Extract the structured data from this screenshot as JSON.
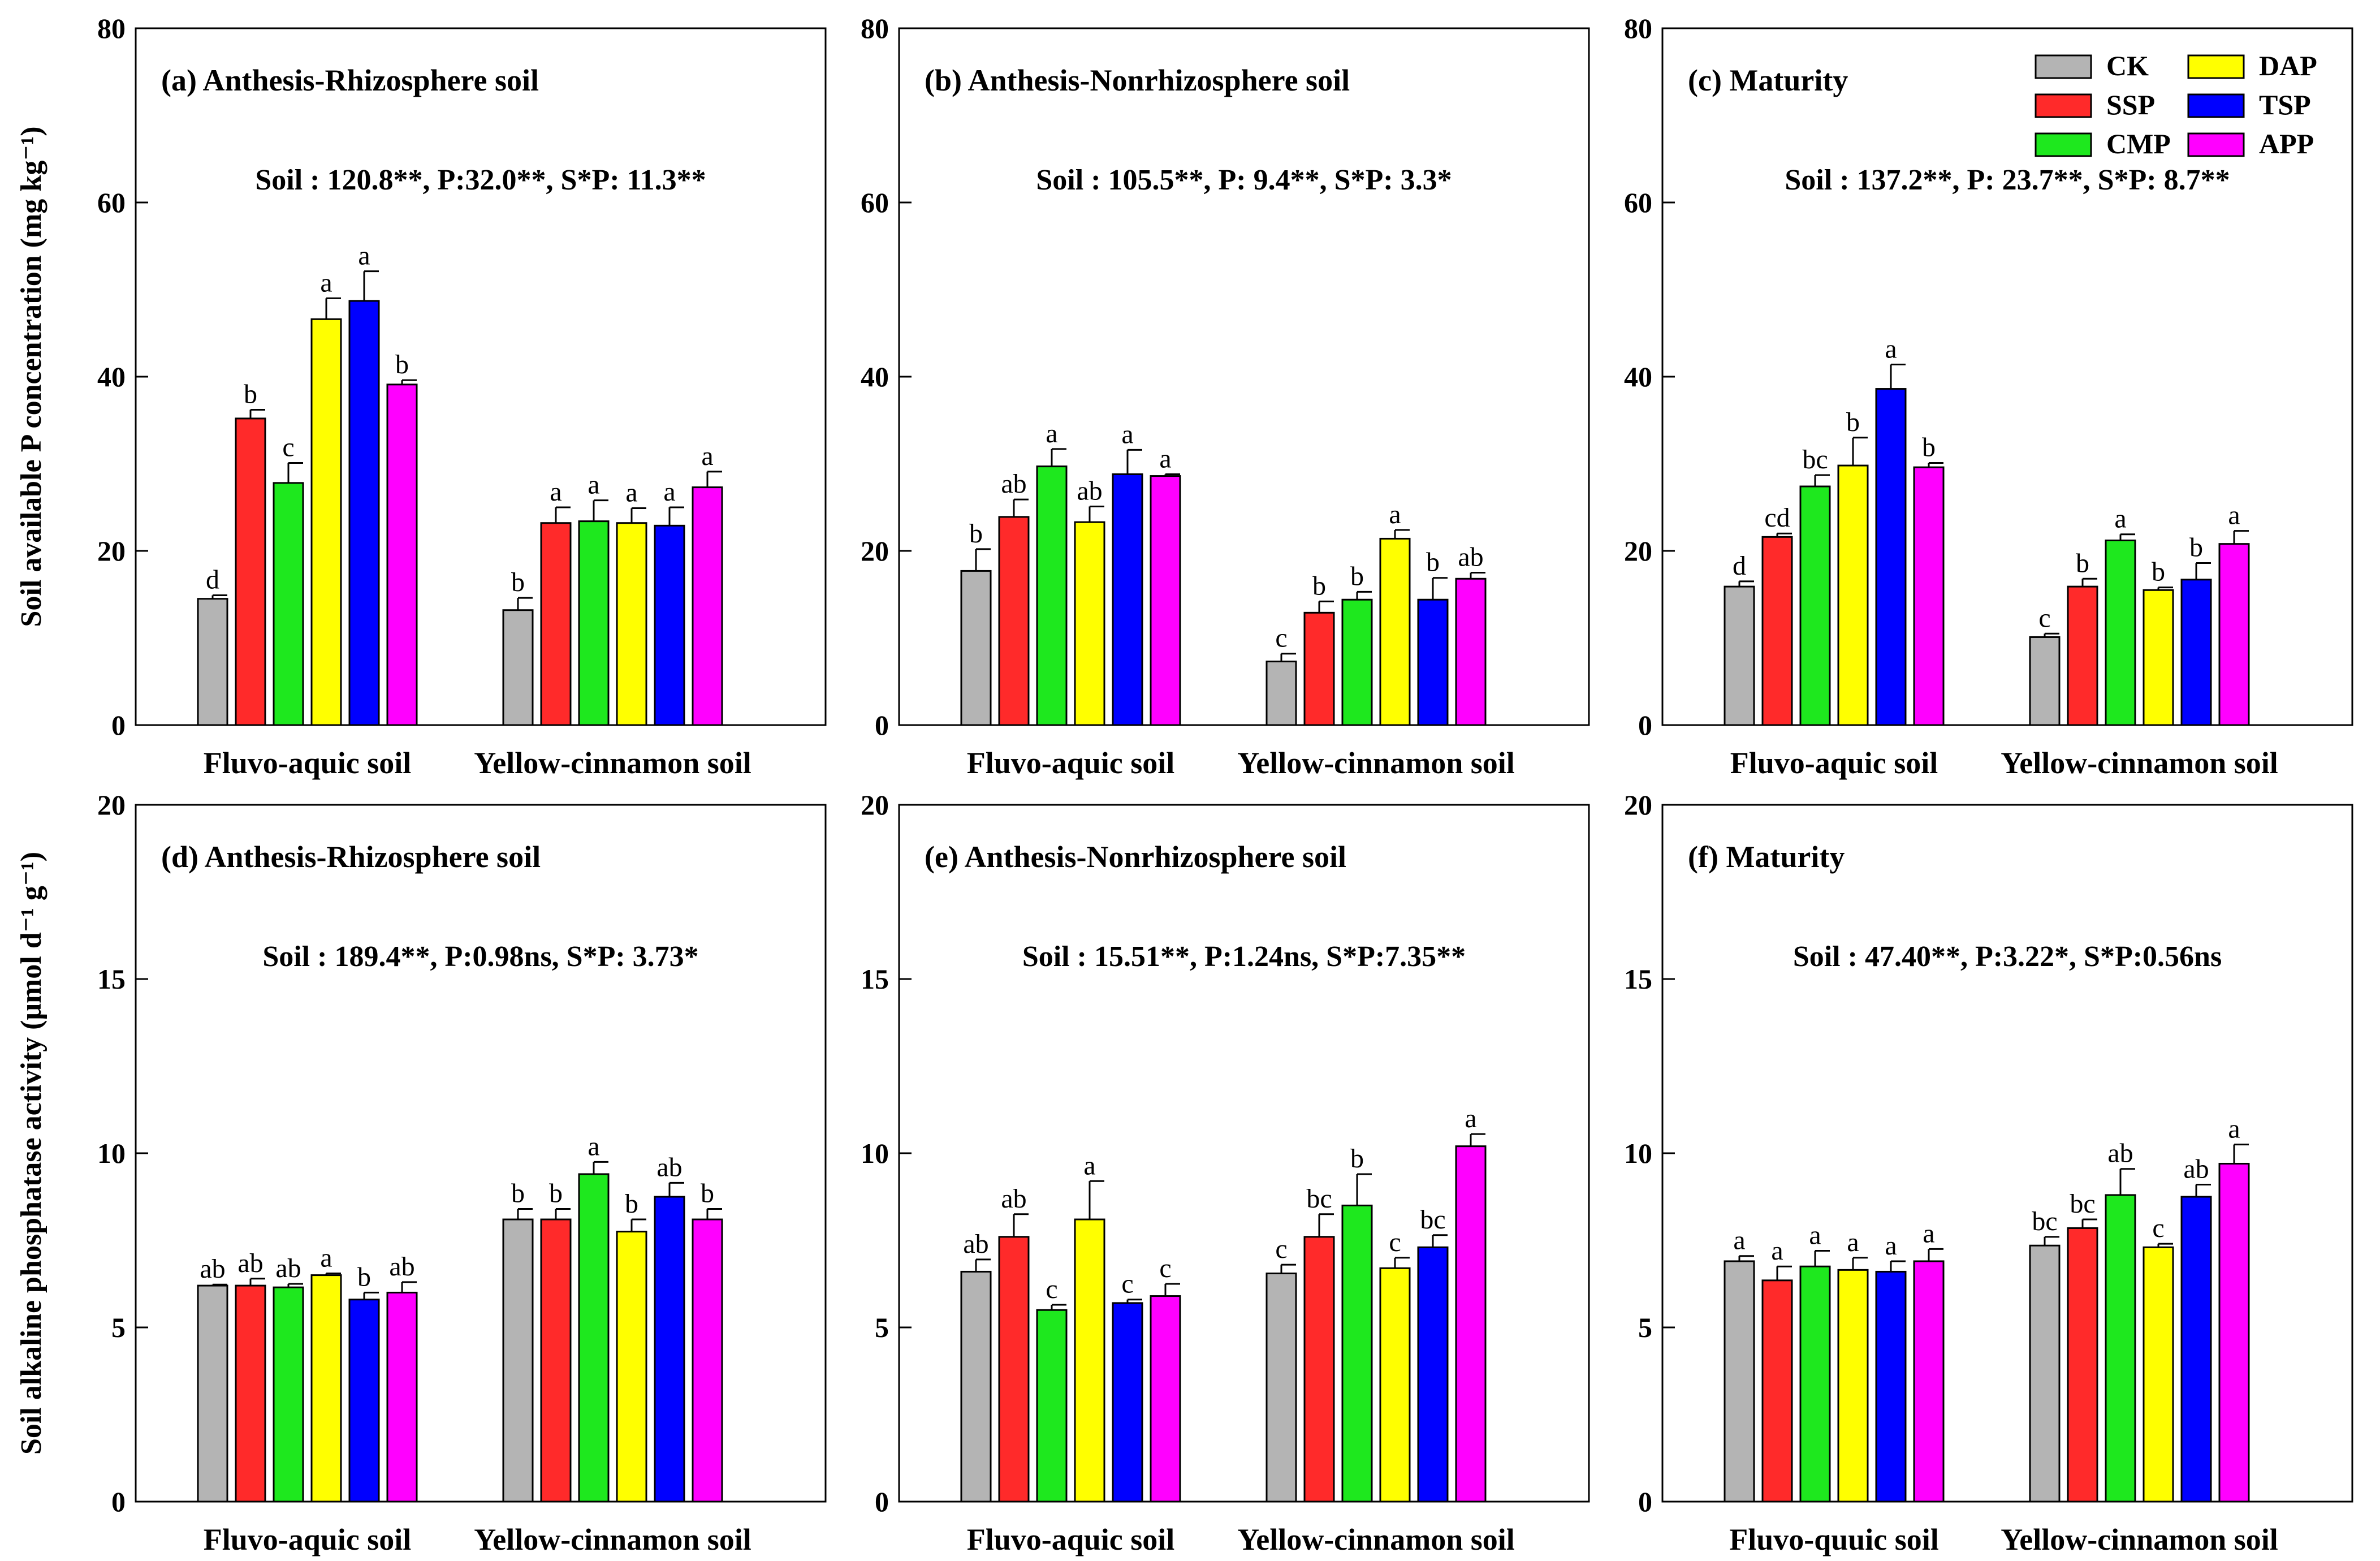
{
  "colors": {
    "CK": "#b4b4b4",
    "SSP": "#ff2a2a",
    "CMP": "#1ee81e",
    "DAP": "#ffff00",
    "TSP": "#0000ff",
    "APP": "#ff00ff"
  },
  "chart_data": [
    {
      "type": "bar",
      "panel": "a",
      "title": "(a) Anthesis-Rhizosphere soil",
      "ylabel": "Soil available P concentration (mg kg⁻¹)",
      "ylim": [
        0,
        80
      ],
      "yticks": [
        0,
        20,
        40,
        60,
        80
      ],
      "annotation": "Soil : 120.8**, P:32.0**, S*P: 11.3**",
      "categories": [
        "Fluvo-aquic soil",
        "Yellow-cinnamon soil"
      ],
      "series": [
        {
          "name": "CK",
          "values": [
            14.5,
            13.2
          ],
          "errors": [
            0.4,
            1.4
          ],
          "letters": [
            "d",
            "b"
          ]
        },
        {
          "name": "SSP",
          "values": [
            35.2,
            23.2
          ],
          "errors": [
            1.0,
            1.8
          ],
          "letters": [
            "b",
            "a"
          ]
        },
        {
          "name": "CMP",
          "values": [
            27.8,
            23.4
          ],
          "errors": [
            2.3,
            2.4
          ],
          "letters": [
            "c",
            "a"
          ]
        },
        {
          "name": "DAP",
          "values": [
            46.6,
            23.2
          ],
          "errors": [
            2.4,
            1.7
          ],
          "letters": [
            "a",
            "a"
          ]
        },
        {
          "name": "TSP",
          "values": [
            48.7,
            22.9
          ],
          "errors": [
            3.4,
            2.1
          ],
          "letters": [
            "a",
            "a"
          ]
        },
        {
          "name": "APP",
          "values": [
            39.1,
            27.3
          ],
          "errors": [
            0.5,
            1.8
          ],
          "letters": [
            "b",
            "a"
          ]
        }
      ]
    },
    {
      "type": "bar",
      "panel": "b",
      "title": "(b) Anthesis-Nonrhizosphere soil",
      "ylim": [
        0,
        80
      ],
      "yticks": [
        0,
        20,
        40,
        60,
        80
      ],
      "annotation": "Soil : 105.5**, P: 9.4**, S*P: 3.3*",
      "categories": [
        "Fluvo-aquic soil",
        "Yellow-cinnamon soil"
      ],
      "series": [
        {
          "name": "CK",
          "values": [
            17.7,
            7.3
          ],
          "errors": [
            2.5,
            0.9
          ],
          "letters": [
            "b",
            "c"
          ]
        },
        {
          "name": "SSP",
          "values": [
            23.9,
            12.9
          ],
          "errors": [
            2.0,
            1.3
          ],
          "letters": [
            "ab",
            "b"
          ]
        },
        {
          "name": "CMP",
          "values": [
            29.7,
            14.4
          ],
          "errors": [
            2.0,
            0.9
          ],
          "letters": [
            "a",
            "b"
          ]
        },
        {
          "name": "DAP",
          "values": [
            23.3,
            21.4
          ],
          "errors": [
            1.8,
            1.0
          ],
          "letters": [
            "ab",
            "a"
          ]
        },
        {
          "name": "TSP",
          "values": [
            28.8,
            14.4
          ],
          "errors": [
            2.8,
            2.5
          ],
          "letters": [
            "a",
            "b"
          ]
        },
        {
          "name": "APP",
          "values": [
            28.6,
            16.8
          ],
          "errors": [
            0.2,
            0.7
          ],
          "letters": [
            "a",
            "ab"
          ]
        }
      ]
    },
    {
      "type": "bar",
      "panel": "c",
      "title": "(c) Maturity",
      "ylim": [
        0,
        80
      ],
      "yticks": [
        0,
        20,
        40,
        60,
        80
      ],
      "annotation": "Soil : 137.2**, P: 23.7**, S*P: 8.7**",
      "categories": [
        "Fluvo-aquic soil",
        "Yellow-cinnamon soil"
      ],
      "series": [
        {
          "name": "CK",
          "values": [
            15.9,
            10.1
          ],
          "errors": [
            0.6,
            0.4
          ],
          "letters": [
            "d",
            "c"
          ]
        },
        {
          "name": "SSP",
          "values": [
            21.6,
            15.9
          ],
          "errors": [
            0.4,
            0.9
          ],
          "letters": [
            "cd",
            "b"
          ]
        },
        {
          "name": "CMP",
          "values": [
            27.4,
            21.2
          ],
          "errors": [
            1.3,
            0.7
          ],
          "letters": [
            "bc",
            "a"
          ]
        },
        {
          "name": "DAP",
          "values": [
            29.8,
            15.5
          ],
          "errors": [
            3.2,
            0.3
          ],
          "letters": [
            "b",
            "b"
          ]
        },
        {
          "name": "TSP",
          "values": [
            38.6,
            16.7
          ],
          "errors": [
            2.8,
            1.9
          ],
          "letters": [
            "a",
            "b"
          ]
        },
        {
          "name": "APP",
          "values": [
            29.6,
            20.8
          ],
          "errors": [
            0.5,
            1.5
          ],
          "letters": [
            "b",
            "a"
          ]
        }
      ]
    },
    {
      "type": "bar",
      "panel": "d",
      "title": "(d) Anthesis-Rhizosphere soil",
      "ylabel": "Soil alkaline phosphatase activity (μmol d⁻¹ g⁻¹)",
      "ylim": [
        0,
        20
      ],
      "yticks": [
        0,
        5,
        10,
        15,
        20
      ],
      "annotation": "Soil : 189.4**, P:0.98ns, S*P: 3.73*",
      "categories": [
        "Fluvo-aquic soil",
        "Yellow-cinnamon soil"
      ],
      "series": [
        {
          "name": "CK",
          "values": [
            6.2,
            8.1
          ],
          "errors": [
            0.03,
            0.3
          ],
          "letters": [
            "ab",
            "b"
          ]
        },
        {
          "name": "SSP",
          "values": [
            6.2,
            8.1
          ],
          "errors": [
            0.2,
            0.3
          ],
          "letters": [
            "ab",
            "b"
          ]
        },
        {
          "name": "CMP",
          "values": [
            6.15,
            9.4
          ],
          "errors": [
            0.1,
            0.35
          ],
          "letters": [
            "ab",
            "a"
          ]
        },
        {
          "name": "DAP",
          "values": [
            6.5,
            7.75
          ],
          "errors": [
            0.05,
            0.35
          ],
          "letters": [
            "a",
            "b"
          ]
        },
        {
          "name": "TSP",
          "values": [
            5.8,
            8.75
          ],
          "errors": [
            0.2,
            0.4
          ],
          "letters": [
            "b",
            "ab"
          ]
        },
        {
          "name": "APP",
          "values": [
            6.0,
            8.1
          ],
          "errors": [
            0.3,
            0.3
          ],
          "letters": [
            "ab",
            "b"
          ]
        }
      ]
    },
    {
      "type": "bar",
      "panel": "e",
      "title": "(e) Anthesis-Nonrhizosphere soil",
      "ylim": [
        0,
        20
      ],
      "yticks": [
        0,
        5,
        10,
        15,
        20
      ],
      "annotation": "Soil : 15.51**, P:1.24ns, S*P:7.35**",
      "categories": [
        "Fluvo-aquic soil",
        "Yellow-cinnamon soil"
      ],
      "series": [
        {
          "name": "CK",
          "values": [
            6.6,
            6.55
          ],
          "errors": [
            0.35,
            0.25
          ],
          "letters": [
            "ab",
            "c"
          ]
        },
        {
          "name": "SSP",
          "values": [
            7.6,
            7.6
          ],
          "errors": [
            0.65,
            0.65
          ],
          "letters": [
            "ab",
            "bc"
          ]
        },
        {
          "name": "CMP",
          "values": [
            5.5,
            8.5
          ],
          "errors": [
            0.15,
            0.9
          ],
          "letters": [
            "c",
            "b"
          ]
        },
        {
          "name": "DAP",
          "values": [
            8.1,
            6.7
          ],
          "errors": [
            1.1,
            0.3
          ],
          "letters": [
            "a",
            "c"
          ]
        },
        {
          "name": "TSP",
          "values": [
            5.7,
            7.3
          ],
          "errors": [
            0.1,
            0.35
          ],
          "letters": [
            "c",
            "bc"
          ]
        },
        {
          "name": "APP",
          "values": [
            5.9,
            10.2
          ],
          "errors": [
            0.35,
            0.35
          ],
          "letters": [
            "c",
            "a"
          ]
        }
      ]
    },
    {
      "type": "bar",
      "panel": "f",
      "title": "(f) Maturity",
      "ylim": [
        0,
        20
      ],
      "yticks": [
        0,
        5,
        10,
        15,
        20
      ],
      "annotation": "Soil : 47.40**, P:3.22*, S*P:0.56ns",
      "categories": [
        "Fluvo-quuic soil",
        "Yellow-cinnamon soil"
      ],
      "series": [
        {
          "name": "CK",
          "values": [
            6.9,
            7.35
          ],
          "errors": [
            0.15,
            0.25
          ],
          "letters": [
            "a",
            "bc"
          ]
        },
        {
          "name": "SSP",
          "values": [
            6.35,
            7.85
          ],
          "errors": [
            0.4,
            0.25
          ],
          "letters": [
            "a",
            "bc"
          ]
        },
        {
          "name": "CMP",
          "values": [
            6.75,
            8.8
          ],
          "errors": [
            0.45,
            0.75
          ],
          "letters": [
            "a",
            "ab"
          ]
        },
        {
          "name": "DAP",
          "values": [
            6.65,
            7.3
          ],
          "errors": [
            0.35,
            0.1
          ],
          "letters": [
            "a",
            "c"
          ]
        },
        {
          "name": "TSP",
          "values": [
            6.6,
            8.75
          ],
          "errors": [
            0.3,
            0.35
          ],
          "letters": [
            "a",
            "ab"
          ]
        },
        {
          "name": "APP",
          "values": [
            6.9,
            9.7
          ],
          "errors": [
            0.35,
            0.55
          ],
          "letters": [
            "a",
            "a"
          ]
        }
      ]
    }
  ],
  "legend": {
    "entries": [
      "CK",
      "DAP",
      "SSP",
      "TSP",
      "CMP",
      "APP"
    ],
    "placement": "top-right of panel (c)"
  }
}
